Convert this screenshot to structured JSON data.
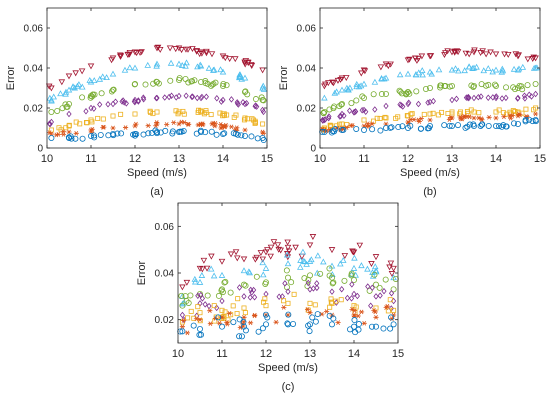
{
  "series_styles": [
    {
      "marker": "triangle-down",
      "color": "#a2142f"
    },
    {
      "marker": "triangle-up",
      "color": "#4dbeee"
    },
    {
      "marker": "circle",
      "color": "#77ac30"
    },
    {
      "marker": "diamond",
      "color": "#7e2f8e"
    },
    {
      "marker": "square",
      "color": "#edb120"
    },
    {
      "marker": "asterisk",
      "color": "#d95319"
    },
    {
      "marker": "circle",
      "color": "#0072bd"
    }
  ],
  "chart_data": [
    {
      "type": "scatter",
      "panel_label": "(a)",
      "xlabel": "Speed (m/s)",
      "ylabel": "Error",
      "xlim": [
        10,
        15
      ],
      "ylim": [
        0,
        0.07
      ],
      "xticks": [
        10,
        11,
        12,
        13,
        14,
        15
      ],
      "yticks": [
        0,
        0.02,
        0.04,
        0.06
      ],
      "ytick_labels": [
        "0",
        "0.02",
        "0.04",
        "0.06"
      ],
      "grid": false,
      "x": [
        10.1,
        10.5,
        11.0,
        11.5,
        12.0,
        12.5,
        13.0,
        13.5,
        14.0,
        14.5,
        14.9
      ],
      "series": [
        {
          "values": [
            0.03,
            0.036,
            0.041,
            0.045,
            0.048,
            0.05,
            0.05,
            0.048,
            0.046,
            0.043,
            0.039
          ]
        },
        {
          "values": [
            0.024,
            0.029,
            0.033,
            0.037,
            0.04,
            0.042,
            0.042,
            0.041,
            0.038,
            0.035,
            0.03
          ]
        },
        {
          "values": [
            0.018,
            0.022,
            0.026,
            0.029,
            0.032,
            0.033,
            0.034,
            0.033,
            0.031,
            0.028,
            0.024
          ]
        },
        {
          "values": [
            0.013,
            0.017,
            0.02,
            0.022,
            0.024,
            0.025,
            0.026,
            0.025,
            0.024,
            0.022,
            0.019
          ]
        },
        {
          "values": [
            0.009,
            0.011,
            0.014,
            0.016,
            0.017,
            0.018,
            0.018,
            0.018,
            0.017,
            0.015,
            0.012
          ]
        },
        {
          "values": [
            0.007,
            0.008,
            0.009,
            0.01,
            0.011,
            0.012,
            0.012,
            0.012,
            0.011,
            0.009,
            0.008
          ]
        },
        {
          "values": [
            0.005,
            0.005,
            0.006,
            0.007,
            0.007,
            0.008,
            0.008,
            0.008,
            0.007,
            0.006,
            0.005
          ]
        }
      ]
    },
    {
      "type": "scatter",
      "panel_label": "(b)",
      "xlabel": "Speed (m/s)",
      "ylabel": "Error",
      "xlim": [
        10,
        15
      ],
      "ylim": [
        0,
        0.07
      ],
      "xticks": [
        10,
        11,
        12,
        13,
        14,
        15
      ],
      "yticks": [
        0,
        0.02,
        0.04,
        0.06
      ],
      "ytick_labels": [
        "0",
        "0.02",
        "0.04",
        "0.06"
      ],
      "grid": false,
      "x": [
        10.1,
        10.5,
        11.0,
        11.5,
        12.0,
        12.5,
        13.0,
        13.5,
        14.0,
        14.5,
        14.9
      ],
      "series": [
        {
          "values": [
            0.031,
            0.035,
            0.039,
            0.042,
            0.044,
            0.046,
            0.048,
            0.048,
            0.047,
            0.046,
            0.045
          ]
        },
        {
          "values": [
            0.025,
            0.029,
            0.032,
            0.035,
            0.037,
            0.038,
            0.039,
            0.04,
            0.039,
            0.039,
            0.04
          ]
        },
        {
          "values": [
            0.018,
            0.022,
            0.025,
            0.027,
            0.028,
            0.03,
            0.031,
            0.031,
            0.031,
            0.03,
            0.032
          ]
        },
        {
          "values": [
            0.014,
            0.017,
            0.019,
            0.021,
            0.022,
            0.023,
            0.024,
            0.025,
            0.025,
            0.025,
            0.027
          ]
        },
        {
          "values": [
            0.01,
            0.012,
            0.014,
            0.015,
            0.016,
            0.017,
            0.018,
            0.018,
            0.018,
            0.018,
            0.02
          ]
        },
        {
          "values": [
            0.009,
            0.01,
            0.011,
            0.012,
            0.013,
            0.014,
            0.015,
            0.015,
            0.015,
            0.016,
            0.017
          ]
        },
        {
          "values": [
            0.008,
            0.009,
            0.009,
            0.01,
            0.01,
            0.011,
            0.011,
            0.011,
            0.011,
            0.012,
            0.014
          ]
        }
      ]
    },
    {
      "type": "scatter",
      "panel_label": "(c)",
      "xlabel": "Speed (m/s)",
      "ylabel": "Error",
      "xlim": [
        10,
        15
      ],
      "ylim": [
        0.01,
        0.07
      ],
      "xticks": [
        10,
        11,
        12,
        13,
        14,
        15
      ],
      "yticks": [
        0.02,
        0.04,
        0.06
      ],
      "ytick_labels": [
        "0.02",
        "0.04",
        "0.06"
      ],
      "grid": false,
      "x": [
        10.1,
        10.5,
        11.0,
        11.5,
        12.0,
        12.5,
        13.0,
        13.5,
        14.0,
        14.5,
        14.9
      ],
      "series": [
        {
          "values": [
            0.034,
            0.042,
            0.045,
            0.046,
            0.049,
            0.051,
            0.052,
            0.05,
            0.049,
            0.047,
            0.042
          ]
        },
        {
          "values": [
            0.03,
            0.036,
            0.039,
            0.041,
            0.042,
            0.044,
            0.045,
            0.043,
            0.042,
            0.041,
            0.038
          ]
        },
        {
          "values": [
            0.026,
            0.031,
            0.033,
            0.035,
            0.036,
            0.038,
            0.039,
            0.038,
            0.037,
            0.035,
            0.033
          ]
        },
        {
          "values": [
            0.022,
            0.027,
            0.028,
            0.03,
            0.031,
            0.032,
            0.033,
            0.032,
            0.031,
            0.03,
            0.028
          ]
        },
        {
          "values": [
            0.019,
            0.023,
            0.024,
            0.025,
            0.026,
            0.027,
            0.027,
            0.027,
            0.026,
            0.025,
            0.024
          ]
        },
        {
          "values": [
            0.017,
            0.02,
            0.021,
            0.021,
            0.022,
            0.022,
            0.023,
            0.022,
            0.022,
            0.021,
            0.022
          ]
        },
        {
          "values": [
            0.015,
            0.016,
            0.017,
            0.017,
            0.018,
            0.018,
            0.018,
            0.018,
            0.017,
            0.017,
            0.018
          ]
        }
      ]
    }
  ]
}
